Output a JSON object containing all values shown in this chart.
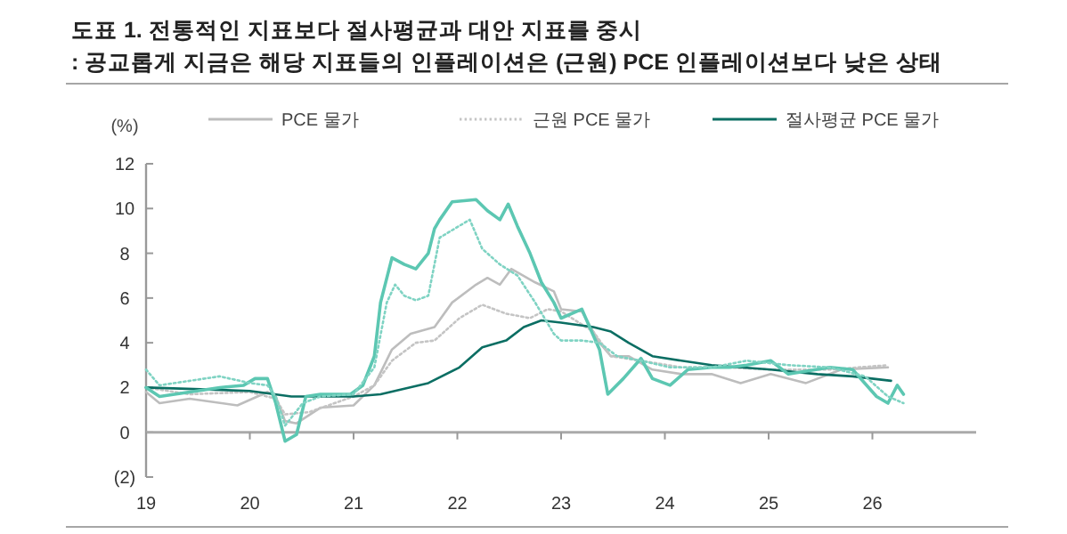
{
  "chart_data": {
    "type": "line",
    "title": "도표 1. 전통적인 지표보다 절사평균과 대안 지표를 중시",
    "subtitle": ": 공교롭게 지금은 해당 지표들의 인플레이션은 (근원) PCE 인플레이션보다 낮은 상태",
    "ylabel": "(%)",
    "xlim": [
      2019,
      2027
    ],
    "xticks": [
      {
        "value": 2019,
        "label": "19"
      },
      {
        "value": 2020,
        "label": "20"
      },
      {
        "value": 2021,
        "label": "21"
      },
      {
        "value": 2022,
        "label": "22"
      },
      {
        "value": 2023,
        "label": "23"
      },
      {
        "value": 2024,
        "label": "24"
      },
      {
        "value": 2025,
        "label": "25"
      },
      {
        "value": 2026,
        "label": "26"
      }
    ],
    "ylim": [
      -2,
      12
    ],
    "yticks": [
      {
        "value": -2,
        "label": "(2)"
      },
      0,
      2,
      4,
      6,
      8,
      10,
      12
    ],
    "legend": "top",
    "marker": "none",
    "series": [
      {
        "name": "PCE 물가",
        "color": "#bdbdbd",
        "line_style": "solid",
        "x": [
          2019.0,
          2019.13,
          2019.42,
          2019.88,
          2020.17,
          2020.25,
          2020.34,
          2020.45,
          2020.68,
          2021.0,
          2021.2,
          2021.37,
          2021.55,
          2021.78,
          2021.95,
          2022.18,
          2022.29,
          2022.41,
          2022.52,
          2022.75,
          2022.93,
          2023.0,
          2023.2,
          2023.37,
          2023.48,
          2023.65,
          2023.88,
          2024.16,
          2024.45,
          2024.73,
          2025.02,
          2025.36,
          2025.7,
          2026.15
        ],
        "values": [
          1.8,
          1.3,
          1.5,
          1.2,
          1.8,
          1.6,
          0.5,
          0.4,
          1.1,
          1.2,
          2.1,
          3.7,
          4.4,
          4.7,
          5.8,
          6.6,
          6.9,
          6.6,
          7.3,
          6.7,
          6.3,
          5.5,
          5.4,
          4.0,
          3.4,
          3.4,
          2.8,
          2.6,
          2.6,
          2.2,
          2.6,
          2.2,
          2.8,
          2.9
        ]
      },
      {
        "name": "근원 PCE 물가",
        "color": "#c4c4c4",
        "line_style": "dotted",
        "x": [
          2019.0,
          2019.42,
          2020.0,
          2020.25,
          2020.34,
          2020.57,
          2021.0,
          2021.2,
          2021.37,
          2021.6,
          2021.78,
          2022.02,
          2022.24,
          2022.47,
          2022.7,
          2022.87,
          2023.0,
          2023.31,
          2023.48,
          2023.77,
          2024.16,
          2024.62,
          2025.02,
          2025.59,
          2026.15
        ],
        "values": [
          2.0,
          1.7,
          1.8,
          1.5,
          0.8,
          0.9,
          1.6,
          2.1,
          3.2,
          4.0,
          4.1,
          5.1,
          5.7,
          5.3,
          5.1,
          5.5,
          5.4,
          4.5,
          3.4,
          3.2,
          2.9,
          2.9,
          2.8,
          2.8,
          3.0
        ]
      },
      {
        "name": "절사평균 PCE 물가",
        "color": "#0b6e63",
        "line_style": "solid",
        "x": [
          2019.0,
          2020.0,
          2020.4,
          2021.0,
          2021.26,
          2021.72,
          2022.02,
          2022.24,
          2022.47,
          2022.64,
          2022.81,
          2023.0,
          2023.31,
          2023.48,
          2023.65,
          2023.88,
          2024.16,
          2024.45,
          2025.02,
          2025.47,
          2025.81,
          2026.18
        ],
        "values": [
          2.0,
          1.85,
          1.6,
          1.6,
          1.7,
          2.2,
          2.9,
          3.8,
          4.1,
          4.7,
          5.0,
          4.9,
          4.7,
          4.5,
          4.0,
          3.4,
          3.2,
          3.0,
          2.8,
          2.6,
          2.5,
          2.3
        ]
      },
      {
        "color": "#5cc7b2",
        "line_style": "solid",
        "x": [
          2019.0,
          2019.13,
          2019.42,
          2019.71,
          2019.94,
          2020.05,
          2020.17,
          2020.25,
          2020.34,
          2020.45,
          2020.54,
          2020.68,
          2020.97,
          2021.09,
          2021.2,
          2021.26,
          2021.37,
          2021.49,
          2021.6,
          2021.72,
          2021.78,
          2021.83,
          2021.95,
          2022.18,
          2022.29,
          2022.41,
          2022.49,
          2022.58,
          2022.7,
          2022.81,
          2022.93,
          2023.0,
          2023.2,
          2023.37,
          2023.45,
          2023.6,
          2023.77,
          2023.88,
          2024.05,
          2024.22,
          2024.45,
          2024.62,
          2024.79,
          2025.02,
          2025.19,
          2025.59,
          2025.81,
          2026.04,
          2026.15,
          2026.24,
          2026.3
        ],
        "values": [
          2.0,
          1.6,
          1.8,
          2.0,
          2.1,
          2.4,
          2.4,
          1.3,
          -0.4,
          -0.1,
          1.6,
          1.7,
          1.7,
          2.1,
          3.4,
          5.8,
          7.8,
          7.5,
          7.3,
          8.0,
          9.1,
          9.5,
          10.3,
          10.4,
          9.9,
          9.5,
          10.2,
          9.2,
          8.0,
          6.7,
          5.8,
          5.1,
          5.5,
          3.7,
          1.7,
          2.4,
          3.3,
          2.4,
          2.1,
          2.8,
          2.9,
          2.9,
          3.0,
          3.2,
          2.6,
          2.9,
          2.8,
          1.6,
          1.3,
          2.1,
          1.7
        ]
      },
      {
        "color": "#7fd3c3",
        "line_style": "dotted",
        "x": [
          2019.0,
          2019.13,
          2019.71,
          2020.0,
          2020.17,
          2020.25,
          2020.34,
          2020.51,
          2020.68,
          2021.0,
          2021.2,
          2021.32,
          2021.4,
          2021.49,
          2021.6,
          2021.72,
          2021.83,
          2022.01,
          2022.12,
          2022.24,
          2022.41,
          2022.58,
          2022.75,
          2022.93,
          2023.0,
          2023.2,
          2023.37,
          2023.54,
          2023.77,
          2024.05,
          2024.45,
          2024.79,
          2025.19,
          2025.59,
          2025.93,
          2026.15,
          2026.3
        ],
        "values": [
          2.8,
          2.1,
          2.5,
          2.2,
          2.1,
          1.6,
          0.3,
          1.3,
          1.6,
          1.7,
          2.9,
          5.8,
          6.6,
          6.1,
          5.9,
          6.1,
          8.7,
          9.2,
          9.5,
          8.2,
          7.5,
          7.0,
          5.8,
          4.4,
          4.1,
          4.1,
          4.0,
          3.4,
          3.2,
          2.9,
          2.9,
          3.2,
          3.0,
          2.9,
          2.5,
          1.6,
          1.3
        ]
      }
    ]
  }
}
